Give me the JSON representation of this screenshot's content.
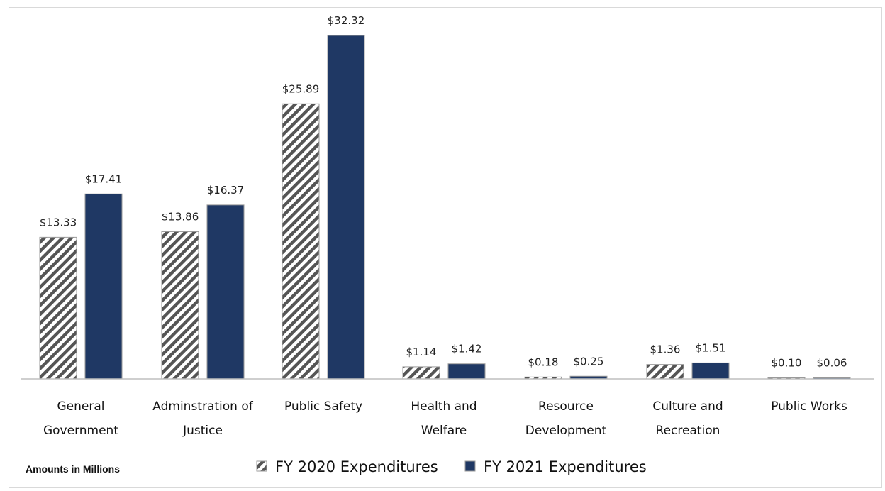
{
  "chart_data": {
    "type": "bar",
    "categories": [
      [
        "General",
        "Government"
      ],
      [
        "Adminstration of",
        "Justice"
      ],
      [
        "Public Safety"
      ],
      [
        "Health and",
        "Welfare"
      ],
      [
        "Resource",
        "Development"
      ],
      [
        "Culture and",
        "Recreation"
      ],
      [
        "Public Works"
      ]
    ],
    "series": [
      {
        "name": "FY 2020 Expenditures",
        "values": [
          13.33,
          13.86,
          25.89,
          1.14,
          0.18,
          1.36,
          0.1
        ],
        "labels": [
          "$13.33",
          "$13.86",
          "$25.89",
          "$1.14",
          "$0.18",
          "$1.36",
          "$0.10"
        ],
        "pattern": "diagonal-hatch",
        "color": "#555555"
      },
      {
        "name": "FY 2021 Expenditures",
        "values": [
          17.41,
          16.37,
          32.32,
          1.42,
          0.25,
          1.51,
          0.06
        ],
        "labels": [
          "$17.41",
          "$16.37",
          "$32.32",
          "$1.42",
          "$0.25",
          "$1.51",
          "$0.06"
        ],
        "pattern": "solid",
        "color": "#1f3864"
      }
    ],
    "ylim": [
      0,
      33
    ],
    "grid": false,
    "legend_position": "bottom",
    "note": "Amounts in Millions",
    "axis_color": "#bfbfbf"
  }
}
